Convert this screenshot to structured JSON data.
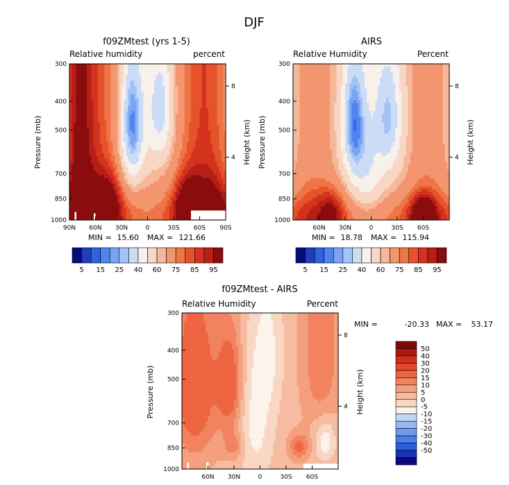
{
  "page": {
    "season": "DJF"
  },
  "colors": {
    "top_palette": [
      "#0a0a7a",
      "#1f3dbf",
      "#2f62e0",
      "#4f83ef",
      "#7aa4f3",
      "#a3c2f5",
      "#cbdcf6",
      "#f8f0ea",
      "#f8d7c5",
      "#f5b89b",
      "#f39670",
      "#ef7546",
      "#e6532a",
      "#d3321d",
      "#b71e16",
      "#8a0c0c"
    ],
    "diff_palette": [
      "#0a0a7a",
      "#1733b7",
      "#2e5ce0",
      "#4c7de9",
      "#6f9aef",
      "#98b8f3",
      "#c3d6f5",
      "#fbf3ec",
      "#f8d8c4",
      "#f6bba0",
      "#f4a07f",
      "#f2835f",
      "#ee6641",
      "#e5482b",
      "#cf2f1c",
      "#ad1a12",
      "#7f0808"
    ],
    "missing": "#ffffff"
  },
  "chart_data": [
    {
      "type": "heatmap",
      "id": "model",
      "title": "f09ZMtest (yrs 1-5)",
      "left_label": "Relative humidity",
      "right_label": "percent",
      "ylabel": "Pressure (mb)",
      "y2label": "Height (km)",
      "y_ticks": [
        "300",
        "400",
        "500",
        "700",
        "850",
        "1000"
      ],
      "y2_ticks": [
        "8",
        "4"
      ],
      "x_ticks": [
        "90N",
        "60N",
        "30N",
        "0",
        "30S",
        "60S",
        "90S"
      ],
      "x_range": [
        90,
        -90
      ],
      "y_range_mb": [
        300,
        1000
      ],
      "stats": {
        "min_label": "MIN =",
        "min": "15.60",
        "max_label": "MAX =",
        "max": "121.66"
      },
      "colorbar_labels": [
        "5",
        "15",
        "25",
        "40",
        "60",
        "75",
        "85",
        "95"
      ]
    },
    {
      "type": "heatmap",
      "id": "obs",
      "title": "AIRS",
      "left_label": "Relative Humidity",
      "right_label": "Percent",
      "ylabel": "Pressure (mb)",
      "y2label": "Height (km)",
      "y_ticks": [
        "300",
        "400",
        "500",
        "700",
        "850",
        "1000"
      ],
      "y2_ticks": [
        "8",
        "4"
      ],
      "x_ticks": [
        "60N",
        "30N",
        "0",
        "30S",
        "60S"
      ],
      "x_range": [
        90,
        -90
      ],
      "y_range_mb": [
        300,
        1000
      ],
      "stats": {
        "min_label": "MIN =",
        "min": "18.78",
        "max_label": "MAX =",
        "max": "115.94"
      },
      "colorbar_labels": [
        "5",
        "15",
        "25",
        "40",
        "60",
        "75",
        "85",
        "95"
      ]
    },
    {
      "type": "heatmap",
      "id": "diff",
      "title": "f09ZMtest - AIRS",
      "left_label": "Relative Humidity",
      "right_label": "Percent",
      "ylabel": "Pressure (mb)",
      "y2label": "Height (km)",
      "y_ticks": [
        "300",
        "400",
        "500",
        "700",
        "850",
        "1000"
      ],
      "y2_ticks": [
        "8",
        "4"
      ],
      "x_ticks": [
        "60N",
        "30N",
        "0",
        "30S",
        "60S"
      ],
      "x_range": [
        90,
        -90
      ],
      "y_range_mb": [
        300,
        1000
      ],
      "stats": {
        "min_label": "MIN =",
        "min": "-20.33",
        "max_label": "MAX =",
        "max": "53.17"
      },
      "colorbar_labels": [
        "50",
        "40",
        "30",
        "20",
        "15",
        "10",
        "5",
        "0",
        "-5",
        "-10",
        "-15",
        "-20",
        "-30",
        "-40",
        "-50"
      ]
    }
  ]
}
